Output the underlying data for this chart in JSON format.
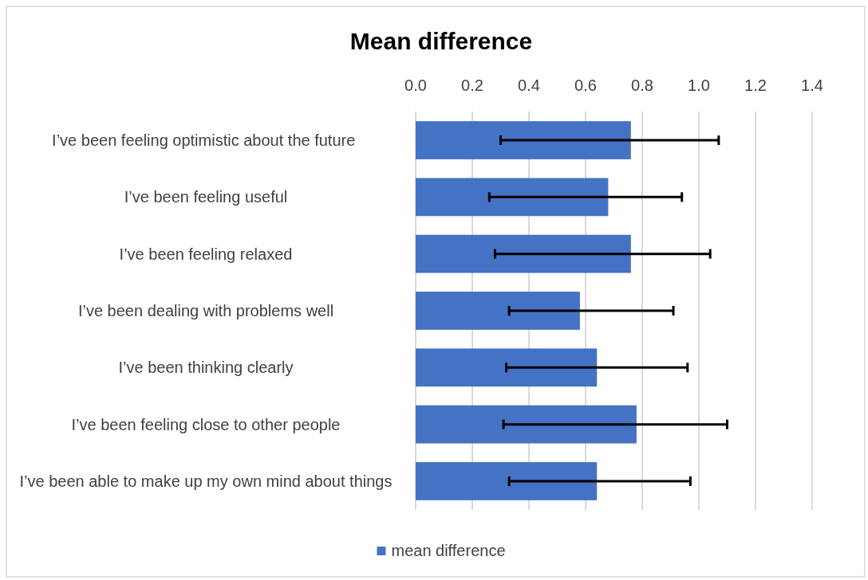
{
  "chart_data": {
    "type": "bar",
    "orientation": "horizontal",
    "title": "Mean difference",
    "categories": [
      "I’ve been feeling optimistic about the future ",
      "I’ve been feeling useful",
      "I’ve been feeling relaxed",
      "I’ve been dealing with problems well",
      "I’ve been thinking clearly",
      "I’ve been feeling close to other people",
      "I’ve been able to make up my own mind about things"
    ],
    "series": [
      {
        "name": "mean difference",
        "color": "#4472c4",
        "values": [
          0.76,
          0.68,
          0.76,
          0.58,
          0.64,
          0.78,
          0.64
        ],
        "errors": [
          [
            0.3,
            1.07
          ],
          [
            0.26,
            0.94
          ],
          [
            0.28,
            1.04
          ],
          [
            0.33,
            0.91
          ],
          [
            0.32,
            0.96
          ],
          [
            0.31,
            1.1
          ],
          [
            0.33,
            0.97
          ]
        ]
      }
    ],
    "xlim": [
      0,
      1.4
    ],
    "xticks": [
      {
        "value": 0,
        "label": "0.0"
      },
      {
        "value": 0.2,
        "label": "0.2"
      },
      {
        "value": 0.4,
        "label": "0.4"
      },
      {
        "value": 0.6,
        "label": "0.6"
      },
      {
        "value": 0.8,
        "label": "0.8"
      },
      {
        "value": 1,
        "label": "1.0"
      },
      {
        "value": 1.2,
        "label": "1.2"
      },
      {
        "value": 1.4,
        "label": "1.4"
      }
    ],
    "grid": "x",
    "legend": "bottom"
  }
}
